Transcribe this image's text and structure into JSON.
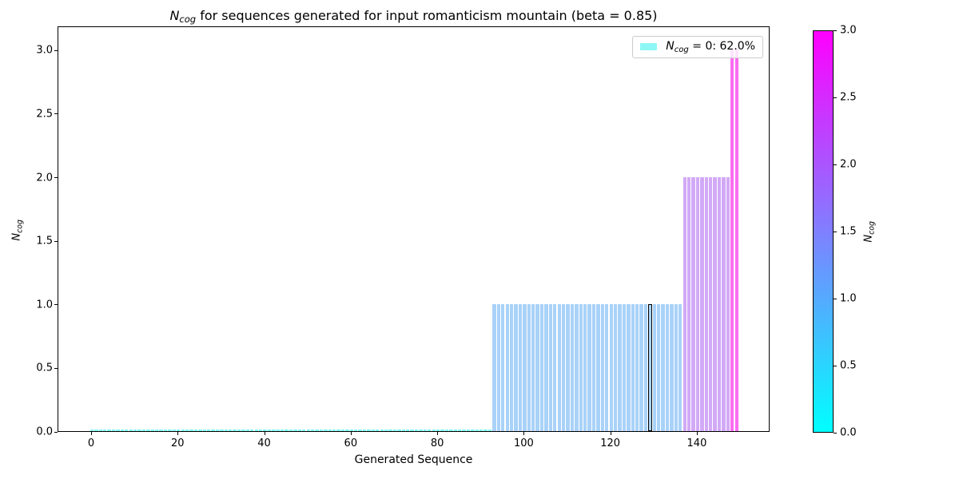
{
  "title": {
    "math": "N",
    "sub": "cog",
    "rest": " for sequences generated for input romanticism mountain (beta = 0.85)"
  },
  "axes": {
    "xlabel": "Generated Sequence",
    "ylabel": {
      "math": "N",
      "sub": "cog"
    },
    "x_tick_labels": [
      "0",
      "20",
      "40",
      "60",
      "80",
      "100",
      "120",
      "140"
    ],
    "y_tick_labels": [
      "0.0",
      "0.5",
      "1.0",
      "1.5",
      "2.0",
      "2.5",
      "3.0"
    ]
  },
  "legend": {
    "math": "N",
    "sub": "cog",
    "rest": " = 0: 62.0%",
    "swatch_color": "#8df7f5"
  },
  "colorbar": {
    "label": {
      "math": "N",
      "sub": "cog"
    },
    "tick_labels": [
      "0.0",
      "0.5",
      "1.0",
      "1.5",
      "2.0",
      "2.5",
      "3.0"
    ],
    "min": 0.0,
    "max": 3.0,
    "bottom_color": "#00ffff",
    "top_color": "#ff00ff"
  },
  "chart_data": {
    "type": "bar",
    "title": "N_cog for sequences generated for input romanticism mountain (beta = 0.85)",
    "xlabel": "Generated Sequence",
    "ylabel": "N_cog",
    "n_bars": 150,
    "x_range": [
      0,
      149
    ],
    "ylim": [
      0,
      3.19
    ],
    "x_ticks": [
      0,
      20,
      40,
      60,
      80,
      100,
      120,
      140
    ],
    "y_ticks": [
      0,
      0.5,
      1,
      1.5,
      2,
      2.5,
      3
    ],
    "grid": false,
    "legend_position": "upper right",
    "bar_values_rle": [
      [
        93,
        0
      ],
      [
        44,
        1
      ],
      [
        11,
        2
      ],
      [
        2,
        3
      ]
    ],
    "groups": [
      {
        "value": 0,
        "x_start": 0,
        "x_end": 92,
        "count": 93,
        "percent_of_total": 62.0,
        "color": "#82f7f3"
      },
      {
        "value": 1,
        "x_start": 93,
        "x_end": 136,
        "count": 44,
        "color": "#a9d2f8"
      },
      {
        "value": 2,
        "x_start": 137,
        "x_end": 147,
        "count": 11,
        "color": "#d2a9f6"
      },
      {
        "value": 3,
        "x_start": 148,
        "x_end": 149,
        "count": 2,
        "color": "#fb6df2"
      }
    ],
    "highlighted_bar": {
      "x": 129,
      "value": 1,
      "edge_color": "#000000"
    },
    "colormap": "cool (cyan #00ffff -> magenta #ff00ff), mapped to N_cog 0..3"
  }
}
